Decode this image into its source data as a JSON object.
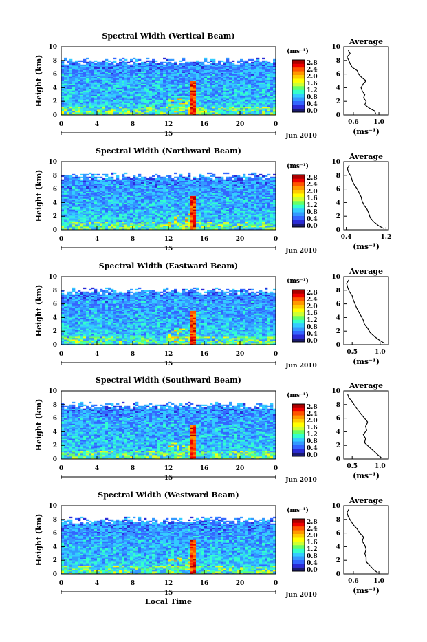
{
  "page": {
    "xlabel": "Local Time"
  },
  "colorbar": {
    "unit_label": "(ms⁻¹)",
    "ticks": [
      "2.8",
      "2.4",
      "2.0",
      "1.6",
      "1.2",
      "0.8",
      "0.4",
      "0.0"
    ],
    "colors": [
      "#1a1a6e",
      "#2b2bd6",
      "#3366ff",
      "#3399ff",
      "#33ccff",
      "#33ffcc",
      "#66ff66",
      "#ccff33",
      "#ffff00",
      "#ffcc00",
      "#ff9900",
      "#ff5500",
      "#ee0000",
      "#aa0000"
    ]
  },
  "date_label": "Jun 2010",
  "day_label": "15",
  "x_ticks": [
    "0",
    "4",
    "8",
    "12",
    "16",
    "20",
    "0"
  ],
  "y_ticks": [
    "10",
    "8",
    "6",
    "4",
    "2",
    "0"
  ],
  "ylabel": "Height (km)",
  "avg_title": "Average",
  "avg_xlabel": "(ms⁻¹)",
  "chart_data": [
    {
      "type": "heatmap",
      "title": "Spectral Width (Vertical Beam)",
      "x": [
        0,
        24
      ],
      "ylim": [
        0,
        10
      ],
      "avg": {
        "xticks": [
          "0.6",
          "1.0"
        ],
        "xlim": [
          0.45,
          1.15
        ],
        "xtick_vals": [
          0.6,
          1.0
        ],
        "profile": [
          [
            0.95,
            0.2
          ],
          [
            0.93,
            0.6
          ],
          [
            0.85,
            1.0
          ],
          [
            0.78,
            1.5
          ],
          [
            0.8,
            2.0
          ],
          [
            0.76,
            2.5
          ],
          [
            0.78,
            3.0
          ],
          [
            0.74,
            3.5
          ],
          [
            0.72,
            4.0
          ],
          [
            0.75,
            4.5
          ],
          [
            0.8,
            5.0
          ],
          [
            0.73,
            5.5
          ],
          [
            0.68,
            6.0
          ],
          [
            0.66,
            6.5
          ],
          [
            0.58,
            7.0
          ],
          [
            0.55,
            7.5
          ],
          [
            0.53,
            8.0
          ],
          [
            0.5,
            8.5
          ],
          [
            0.55,
            9.0
          ],
          [
            0.52,
            9.5
          ]
        ]
      }
    },
    {
      "type": "heatmap",
      "title": "Spectral Width (Northward Beam)",
      "x": [
        0,
        24
      ],
      "ylim": [
        0,
        10
      ],
      "avg": {
        "xticks": [
          "0.4",
          "1.2"
        ],
        "xlim": [
          0.35,
          1.25
        ],
        "xtick_vals": [
          0.4,
          1.2
        ],
        "profile": [
          [
            1.15,
            0.2
          ],
          [
            1.05,
            0.6
          ],
          [
            0.95,
            1.2
          ],
          [
            0.88,
            1.8
          ],
          [
            0.85,
            2.5
          ],
          [
            0.82,
            3.0
          ],
          [
            0.76,
            3.6
          ],
          [
            0.72,
            4.2
          ],
          [
            0.7,
            4.8
          ],
          [
            0.66,
            5.4
          ],
          [
            0.62,
            6.0
          ],
          [
            0.56,
            6.6
          ],
          [
            0.52,
            7.2
          ],
          [
            0.5,
            7.8
          ],
          [
            0.45,
            8.4
          ],
          [
            0.42,
            9.0
          ],
          [
            0.46,
            9.5
          ]
        ]
      }
    },
    {
      "type": "heatmap",
      "title": "Spectral Width (Eastward Beam)",
      "x": [
        0,
        24
      ],
      "ylim": [
        0,
        10
      ],
      "avg": {
        "xticks": [
          "0.5",
          "1.0"
        ],
        "xlim": [
          0.35,
          1.15
        ],
        "xtick_vals": [
          0.5,
          1.0
        ],
        "profile": [
          [
            1.08,
            0.2
          ],
          [
            1.0,
            0.6
          ],
          [
            0.9,
            1.2
          ],
          [
            0.82,
            1.8
          ],
          [
            0.78,
            2.4
          ],
          [
            0.72,
            3.0
          ],
          [
            0.7,
            3.6
          ],
          [
            0.66,
            4.2
          ],
          [
            0.62,
            4.8
          ],
          [
            0.58,
            5.4
          ],
          [
            0.55,
            6.0
          ],
          [
            0.52,
            6.6
          ],
          [
            0.5,
            7.2
          ],
          [
            0.45,
            7.8
          ],
          [
            0.42,
            8.4
          ],
          [
            0.4,
            9.0
          ],
          [
            0.44,
            9.5
          ]
        ]
      }
    },
    {
      "type": "heatmap",
      "title": "Spectral Width (Southward Beam)",
      "x": [
        0,
        24
      ],
      "ylim": [
        0,
        10
      ],
      "avg": {
        "xticks": [
          "0.5",
          "1.0"
        ],
        "xlim": [
          0.35,
          1.15
        ],
        "xtick_vals": [
          0.5,
          1.0
        ],
        "profile": [
          [
            1.02,
            0.2
          ],
          [
            0.96,
            0.6
          ],
          [
            0.88,
            1.2
          ],
          [
            0.8,
            1.8
          ],
          [
            0.72,
            2.4
          ],
          [
            0.74,
            3.0
          ],
          [
            0.7,
            3.6
          ],
          [
            0.76,
            4.2
          ],
          [
            0.74,
            4.8
          ],
          [
            0.78,
            5.4
          ],
          [
            0.72,
            6.0
          ],
          [
            0.66,
            6.6
          ],
          [
            0.6,
            7.2
          ],
          [
            0.55,
            7.8
          ],
          [
            0.5,
            8.4
          ],
          [
            0.44,
            9.0
          ],
          [
            0.42,
            9.5
          ]
        ]
      }
    },
    {
      "type": "heatmap",
      "title": "Spectral Width (Westward Beam)",
      "x": [
        0,
        24
      ],
      "ylim": [
        0,
        10
      ],
      "avg": {
        "xticks": [
          "0.6",
          "1.0"
        ],
        "xlim": [
          0.45,
          1.15
        ],
        "xtick_vals": [
          0.6,
          1.0
        ],
        "profile": [
          [
            0.98,
            0.2
          ],
          [
            0.92,
            0.6
          ],
          [
            0.86,
            1.2
          ],
          [
            0.8,
            1.8
          ],
          [
            0.8,
            2.4
          ],
          [
            0.78,
            3.0
          ],
          [
            0.8,
            3.6
          ],
          [
            0.78,
            4.2
          ],
          [
            0.74,
            4.8
          ],
          [
            0.76,
            5.4
          ],
          [
            0.7,
            6.0
          ],
          [
            0.66,
            6.6
          ],
          [
            0.6,
            7.2
          ],
          [
            0.56,
            7.8
          ],
          [
            0.52,
            8.4
          ],
          [
            0.5,
            9.0
          ],
          [
            0.53,
            9.5
          ]
        ]
      }
    }
  ]
}
